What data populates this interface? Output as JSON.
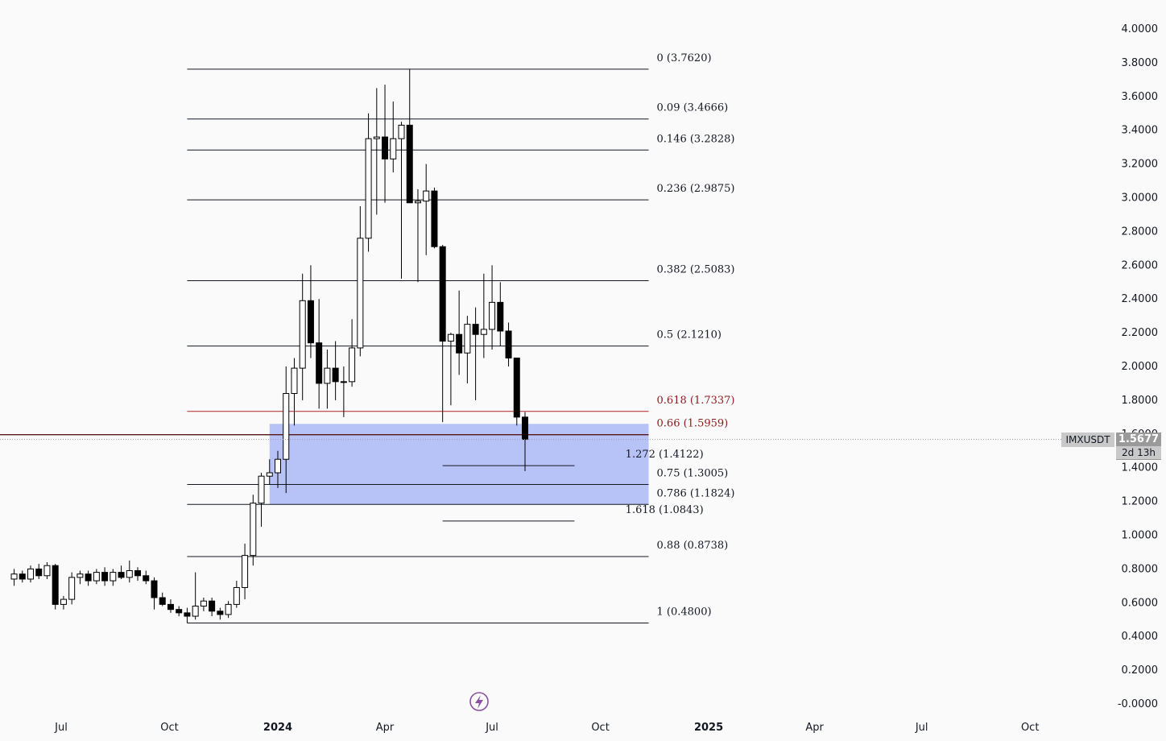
{
  "symbol": "IMXUSDT",
  "current_price": "1.5677",
  "countdown": "2d 13h",
  "icon": "lightning-icon",
  "colors": {
    "background": "#fafafa",
    "bull_candle_fill": "#ffffff",
    "bear_candle_fill": "#000000",
    "fib_line": "#131722",
    "fib_618_line": "#b22222",
    "zone_fill": "#aab8f5"
  },
  "chart_data": {
    "type": "candlestick",
    "title": "",
    "y_axis": {
      "range": [
        -0.0,
        4.0
      ],
      "ticks": [
        "4.0000",
        "3.8000",
        "3.6000",
        "3.4000",
        "3.2000",
        "3.0000",
        "2.8000",
        "2.6000",
        "2.4000",
        "2.2000",
        "2.0000",
        "1.8000",
        "1.6000",
        "1.4000",
        "1.2000",
        "1.0000",
        "0.8000",
        "0.6000",
        "0.4000",
        "0.2000",
        "-0.0000"
      ],
      "position": "right"
    },
    "x_axis": {
      "ticks": [
        {
          "label": "Jul",
          "date": "2023-07-01",
          "bold": false
        },
        {
          "label": "Oct",
          "date": "2023-10-01",
          "bold": false
        },
        {
          "label": "2024",
          "date": "2024-01-01",
          "bold": true
        },
        {
          "label": "Apr",
          "date": "2024-04-01",
          "bold": false
        },
        {
          "label": "Jul",
          "date": "2024-07-01",
          "bold": false
        },
        {
          "label": "Oct",
          "date": "2024-10-01",
          "bold": false
        },
        {
          "label": "2025",
          "date": "2025-01-01",
          "bold": true
        },
        {
          "label": "Apr",
          "date": "2025-04-01",
          "bold": false
        },
        {
          "label": "Jul",
          "date": "2025-07-01",
          "bold": false
        },
        {
          "label": "Oct",
          "date": "2025-10-01",
          "bold": false
        }
      ]
    },
    "candles": [
      {
        "date": "2023-05-22",
        "o": 0.74,
        "h": 0.8,
        "l": 0.7,
        "c": 0.77
      },
      {
        "date": "2023-05-29",
        "o": 0.77,
        "h": 0.79,
        "l": 0.72,
        "c": 0.74
      },
      {
        "date": "2023-06-05",
        "o": 0.74,
        "h": 0.82,
        "l": 0.72,
        "c": 0.8
      },
      {
        "date": "2023-06-12",
        "o": 0.8,
        "h": 0.83,
        "l": 0.74,
        "c": 0.76
      },
      {
        "date": "2023-06-19",
        "o": 0.76,
        "h": 0.84,
        "l": 0.74,
        "c": 0.82
      },
      {
        "date": "2023-06-26",
        "o": 0.82,
        "h": 0.83,
        "l": 0.56,
        "c": 0.59
      },
      {
        "date": "2023-07-03",
        "o": 0.59,
        "h": 0.64,
        "l": 0.56,
        "c": 0.62
      },
      {
        "date": "2023-07-10",
        "o": 0.62,
        "h": 0.78,
        "l": 0.59,
        "c": 0.75
      },
      {
        "date": "2023-07-17",
        "o": 0.75,
        "h": 0.79,
        "l": 0.71,
        "c": 0.77
      },
      {
        "date": "2023-07-24",
        "o": 0.77,
        "h": 0.79,
        "l": 0.7,
        "c": 0.73
      },
      {
        "date": "2023-07-31",
        "o": 0.73,
        "h": 0.8,
        "l": 0.71,
        "c": 0.78
      },
      {
        "date": "2023-08-07",
        "o": 0.78,
        "h": 0.81,
        "l": 0.7,
        "c": 0.73
      },
      {
        "date": "2023-08-14",
        "o": 0.73,
        "h": 0.8,
        "l": 0.7,
        "c": 0.78
      },
      {
        "date": "2023-08-21",
        "o": 0.78,
        "h": 0.82,
        "l": 0.74,
        "c": 0.75
      },
      {
        "date": "2023-08-28",
        "o": 0.75,
        "h": 0.85,
        "l": 0.72,
        "c": 0.79
      },
      {
        "date": "2023-09-04",
        "o": 0.79,
        "h": 0.81,
        "l": 0.73,
        "c": 0.76
      },
      {
        "date": "2023-09-11",
        "o": 0.76,
        "h": 0.79,
        "l": 0.71,
        "c": 0.73
      },
      {
        "date": "2023-09-18",
        "o": 0.73,
        "h": 0.75,
        "l": 0.56,
        "c": 0.63
      },
      {
        "date": "2023-09-25",
        "o": 0.63,
        "h": 0.66,
        "l": 0.58,
        "c": 0.59
      },
      {
        "date": "2023-10-02",
        "o": 0.59,
        "h": 0.62,
        "l": 0.54,
        "c": 0.56
      },
      {
        "date": "2023-10-09",
        "o": 0.56,
        "h": 0.58,
        "l": 0.52,
        "c": 0.54
      },
      {
        "date": "2023-10-16",
        "o": 0.54,
        "h": 0.57,
        "l": 0.48,
        "c": 0.52
      },
      {
        "date": "2023-10-23",
        "o": 0.52,
        "h": 0.78,
        "l": 0.5,
        "c": 0.58
      },
      {
        "date": "2023-10-30",
        "o": 0.58,
        "h": 0.63,
        "l": 0.55,
        "c": 0.61
      },
      {
        "date": "2023-11-06",
        "o": 0.61,
        "h": 0.63,
        "l": 0.52,
        "c": 0.55
      },
      {
        "date": "2023-11-13",
        "o": 0.55,
        "h": 0.57,
        "l": 0.5,
        "c": 0.53
      },
      {
        "date": "2023-11-20",
        "o": 0.53,
        "h": 0.61,
        "l": 0.51,
        "c": 0.59
      },
      {
        "date": "2023-11-27",
        "o": 0.59,
        "h": 0.73,
        "l": 0.57,
        "c": 0.69
      },
      {
        "date": "2023-12-04",
        "o": 0.69,
        "h": 0.95,
        "l": 0.62,
        "c": 0.88
      },
      {
        "date": "2023-12-11",
        "o": 0.88,
        "h": 1.24,
        "l": 0.82,
        "c": 1.19
      },
      {
        "date": "2023-12-18",
        "o": 1.19,
        "h": 1.37,
        "l": 1.05,
        "c": 1.35
      },
      {
        "date": "2023-12-25",
        "o": 1.35,
        "h": 1.45,
        "l": 1.3,
        "c": 1.37
      },
      {
        "date": "2024-01-01",
        "o": 1.37,
        "h": 1.5,
        "l": 1.28,
        "c": 1.45
      },
      {
        "date": "2024-01-08",
        "o": 1.45,
        "h": 2.0,
        "l": 1.25,
        "c": 1.84
      },
      {
        "date": "2024-01-15",
        "o": 1.84,
        "h": 2.05,
        "l": 1.65,
        "c": 1.99
      },
      {
        "date": "2024-01-22",
        "o": 1.99,
        "h": 2.55,
        "l": 1.8,
        "c": 2.39
      },
      {
        "date": "2024-01-29",
        "o": 2.39,
        "h": 2.6,
        "l": 2.05,
        "c": 2.14
      },
      {
        "date": "2024-02-05",
        "o": 2.14,
        "h": 2.4,
        "l": 1.75,
        "c": 1.9
      },
      {
        "date": "2024-02-12",
        "o": 1.9,
        "h": 2.1,
        "l": 1.75,
        "c": 1.99
      },
      {
        "date": "2024-02-19",
        "o": 1.99,
        "h": 2.15,
        "l": 1.8,
        "c": 1.91
      },
      {
        "date": "2024-02-26",
        "o": 1.91,
        "h": 2.0,
        "l": 1.7,
        "c": 1.91
      },
      {
        "date": "2024-03-04",
        "o": 1.91,
        "h": 2.28,
        "l": 1.88,
        "c": 2.11
      },
      {
        "date": "2024-03-11",
        "o": 2.11,
        "h": 2.95,
        "l": 2.06,
        "c": 2.76
      },
      {
        "date": "2024-03-18",
        "o": 2.76,
        "h": 3.5,
        "l": 2.68,
        "c": 3.35
      },
      {
        "date": "2024-03-25",
        "o": 3.35,
        "h": 3.65,
        "l": 2.9,
        "c": 3.36
      },
      {
        "date": "2024-04-01",
        "o": 3.36,
        "h": 3.67,
        "l": 2.97,
        "c": 3.23
      },
      {
        "date": "2024-04-08",
        "o": 3.23,
        "h": 3.57,
        "l": 3.15,
        "c": 3.35
      },
      {
        "date": "2024-04-15",
        "o": 3.35,
        "h": 3.45,
        "l": 2.52,
        "c": 3.43
      },
      {
        "date": "2024-04-22",
        "o": 3.43,
        "h": 3.762,
        "l": 2.97,
        "c": 2.97
      },
      {
        "date": "2024-04-29",
        "o": 2.97,
        "h": 3.05,
        "l": 2.5,
        "c": 2.98
      },
      {
        "date": "2024-05-06",
        "o": 2.98,
        "h": 3.2,
        "l": 2.66,
        "c": 3.04
      },
      {
        "date": "2024-05-13",
        "o": 3.04,
        "h": 3.06,
        "l": 2.7,
        "c": 2.71
      },
      {
        "date": "2024-05-20",
        "o": 2.71,
        "h": 2.72,
        "l": 1.67,
        "c": 2.15
      },
      {
        "date": "2024-05-27",
        "o": 2.15,
        "h": 2.2,
        "l": 1.77,
        "c": 2.19
      },
      {
        "date": "2024-06-03",
        "o": 2.19,
        "h": 2.45,
        "l": 1.95,
        "c": 2.08
      },
      {
        "date": "2024-06-10",
        "o": 2.08,
        "h": 2.3,
        "l": 1.9,
        "c": 2.25
      },
      {
        "date": "2024-06-17",
        "o": 2.25,
        "h": 2.35,
        "l": 1.8,
        "c": 2.19
      },
      {
        "date": "2024-06-24",
        "o": 2.19,
        "h": 2.55,
        "l": 2.05,
        "c": 2.22
      },
      {
        "date": "2024-07-01",
        "o": 2.22,
        "h": 2.6,
        "l": 2.1,
        "c": 2.38
      },
      {
        "date": "2024-07-08",
        "o": 2.38,
        "h": 2.5,
        "l": 2.12,
        "c": 2.21
      },
      {
        "date": "2024-07-15",
        "o": 2.21,
        "h": 2.26,
        "l": 2.0,
        "c": 2.05
      },
      {
        "date": "2024-07-22",
        "o": 2.05,
        "h": 2.05,
        "l": 1.65,
        "c": 1.7
      },
      {
        "date": "2024-07-29",
        "o": 1.7,
        "h": 1.73,
        "l": 1.38,
        "c": 1.5677
      }
    ],
    "fib_retracement": {
      "levels": [
        {
          "label": "0 (3.7620)",
          "value": 3.762
        },
        {
          "label": "0.09 (3.4666)",
          "value": 3.4666
        },
        {
          "label": "0.146 (3.2828)",
          "value": 3.2828
        },
        {
          "label": "0.236 (2.9875)",
          "value": 2.9875
        },
        {
          "label": "0.382 (2.5083)",
          "value": 2.5083
        },
        {
          "label": "0.5 (2.1210)",
          "value": 2.121
        },
        {
          "label": "0.618 (1.7337)",
          "value": 1.7337,
          "highlight": true
        },
        {
          "label": "0.66 (1.5959)",
          "value": 1.5959,
          "highlight": true
        },
        {
          "label": "0.75 (1.3005)",
          "value": 1.3005
        },
        {
          "label": "0.786 (1.1824)",
          "value": 1.1824
        },
        {
          "label": "0.88 (0.8738)",
          "value": 0.8738
        },
        {
          "label": "1 (0.4800)",
          "value": 0.48
        }
      ],
      "start_date": "2023-10-16",
      "end_date": "2024-11-11"
    },
    "fib_extension": {
      "levels": [
        {
          "label": "1.272 (1.4122)",
          "value": 1.4122
        },
        {
          "label": "1.618 (1.0843)",
          "value": 1.0843
        }
      ],
      "start_date": "2024-05-20",
      "end_date": "2024-09-09"
    },
    "zone": {
      "top": 1.66,
      "bottom": 1.1824,
      "start_date": "2023-12-25",
      "end_date": "2024-11-11"
    },
    "horizontal_line": {
      "value": 1.5959,
      "start_date": "2023-04-01"
    },
    "current_price_value": 1.5677
  }
}
